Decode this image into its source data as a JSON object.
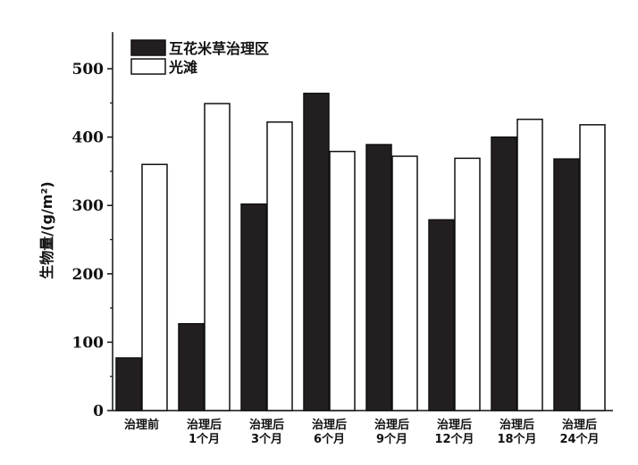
{
  "chart_data": {
    "type": "bar",
    "categories": [
      [
        "治理前"
      ],
      [
        "治理后",
        "1个月"
      ],
      [
        "治理后",
        "3个月"
      ],
      [
        "治理后",
        "6个月"
      ],
      [
        "治理后",
        "9个月"
      ],
      [
        "治理后",
        "12个月"
      ],
      [
        "治理后",
        "18个月"
      ],
      [
        "治理后",
        "24个月"
      ]
    ],
    "series": [
      {
        "name": "互花米草治理区",
        "color": "#231f20",
        "values": [
          77,
          127,
          302,
          464,
          389,
          279,
          400,
          368
        ]
      },
      {
        "name": "光滩",
        "color": "#ffffff",
        "values": [
          360,
          449,
          422,
          379,
          372,
          369,
          426,
          418
        ]
      }
    ],
    "ylabel": "生物量/(g/m²)",
    "xlabel": "",
    "ylim": [
      0,
      540
    ],
    "yticks": [
      0,
      100,
      200,
      300,
      400,
      500
    ],
    "grid": false,
    "legend_position": "top-left"
  }
}
